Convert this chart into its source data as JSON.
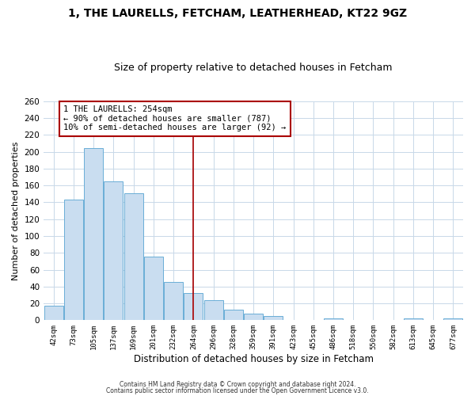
{
  "title": "1, THE LAURELLS, FETCHAM, LEATHERHEAD, KT22 9GZ",
  "subtitle": "Size of property relative to detached houses in Fetcham",
  "xlabel": "Distribution of detached houses by size in Fetcham",
  "ylabel": "Number of detached properties",
  "bar_labels": [
    "42sqm",
    "73sqm",
    "105sqm",
    "137sqm",
    "169sqm",
    "201sqm",
    "232sqm",
    "264sqm",
    "296sqm",
    "328sqm",
    "359sqm",
    "391sqm",
    "423sqm",
    "455sqm",
    "486sqm",
    "518sqm",
    "550sqm",
    "582sqm",
    "613sqm",
    "645sqm",
    "677sqm"
  ],
  "bar_values": [
    17,
    143,
    204,
    165,
    151,
    76,
    45,
    32,
    24,
    13,
    8,
    5,
    0,
    0,
    2,
    0,
    0,
    0,
    2,
    0,
    2
  ],
  "bar_color": "#c9ddf0",
  "bar_edge_color": "#6aaed6",
  "highlight_bar_index": 7,
  "vline_color": "#aa0000",
  "annotation_text": "1 THE LAURELLS: 254sqm\n← 90% of detached houses are smaller (787)\n10% of semi-detached houses are larger (92) →",
  "annotation_box_color": "#ffffff",
  "annotation_box_edge": "#aa0000",
  "ylim": [
    0,
    260
  ],
  "yticks": [
    0,
    20,
    40,
    60,
    80,
    100,
    120,
    140,
    160,
    180,
    200,
    220,
    240,
    260
  ],
  "footer1": "Contains HM Land Registry data © Crown copyright and database right 2024.",
  "footer2": "Contains public sector information licensed under the Open Government Licence v3.0.",
  "background_color": "#ffffff",
  "grid_color": "#c8d8e8"
}
